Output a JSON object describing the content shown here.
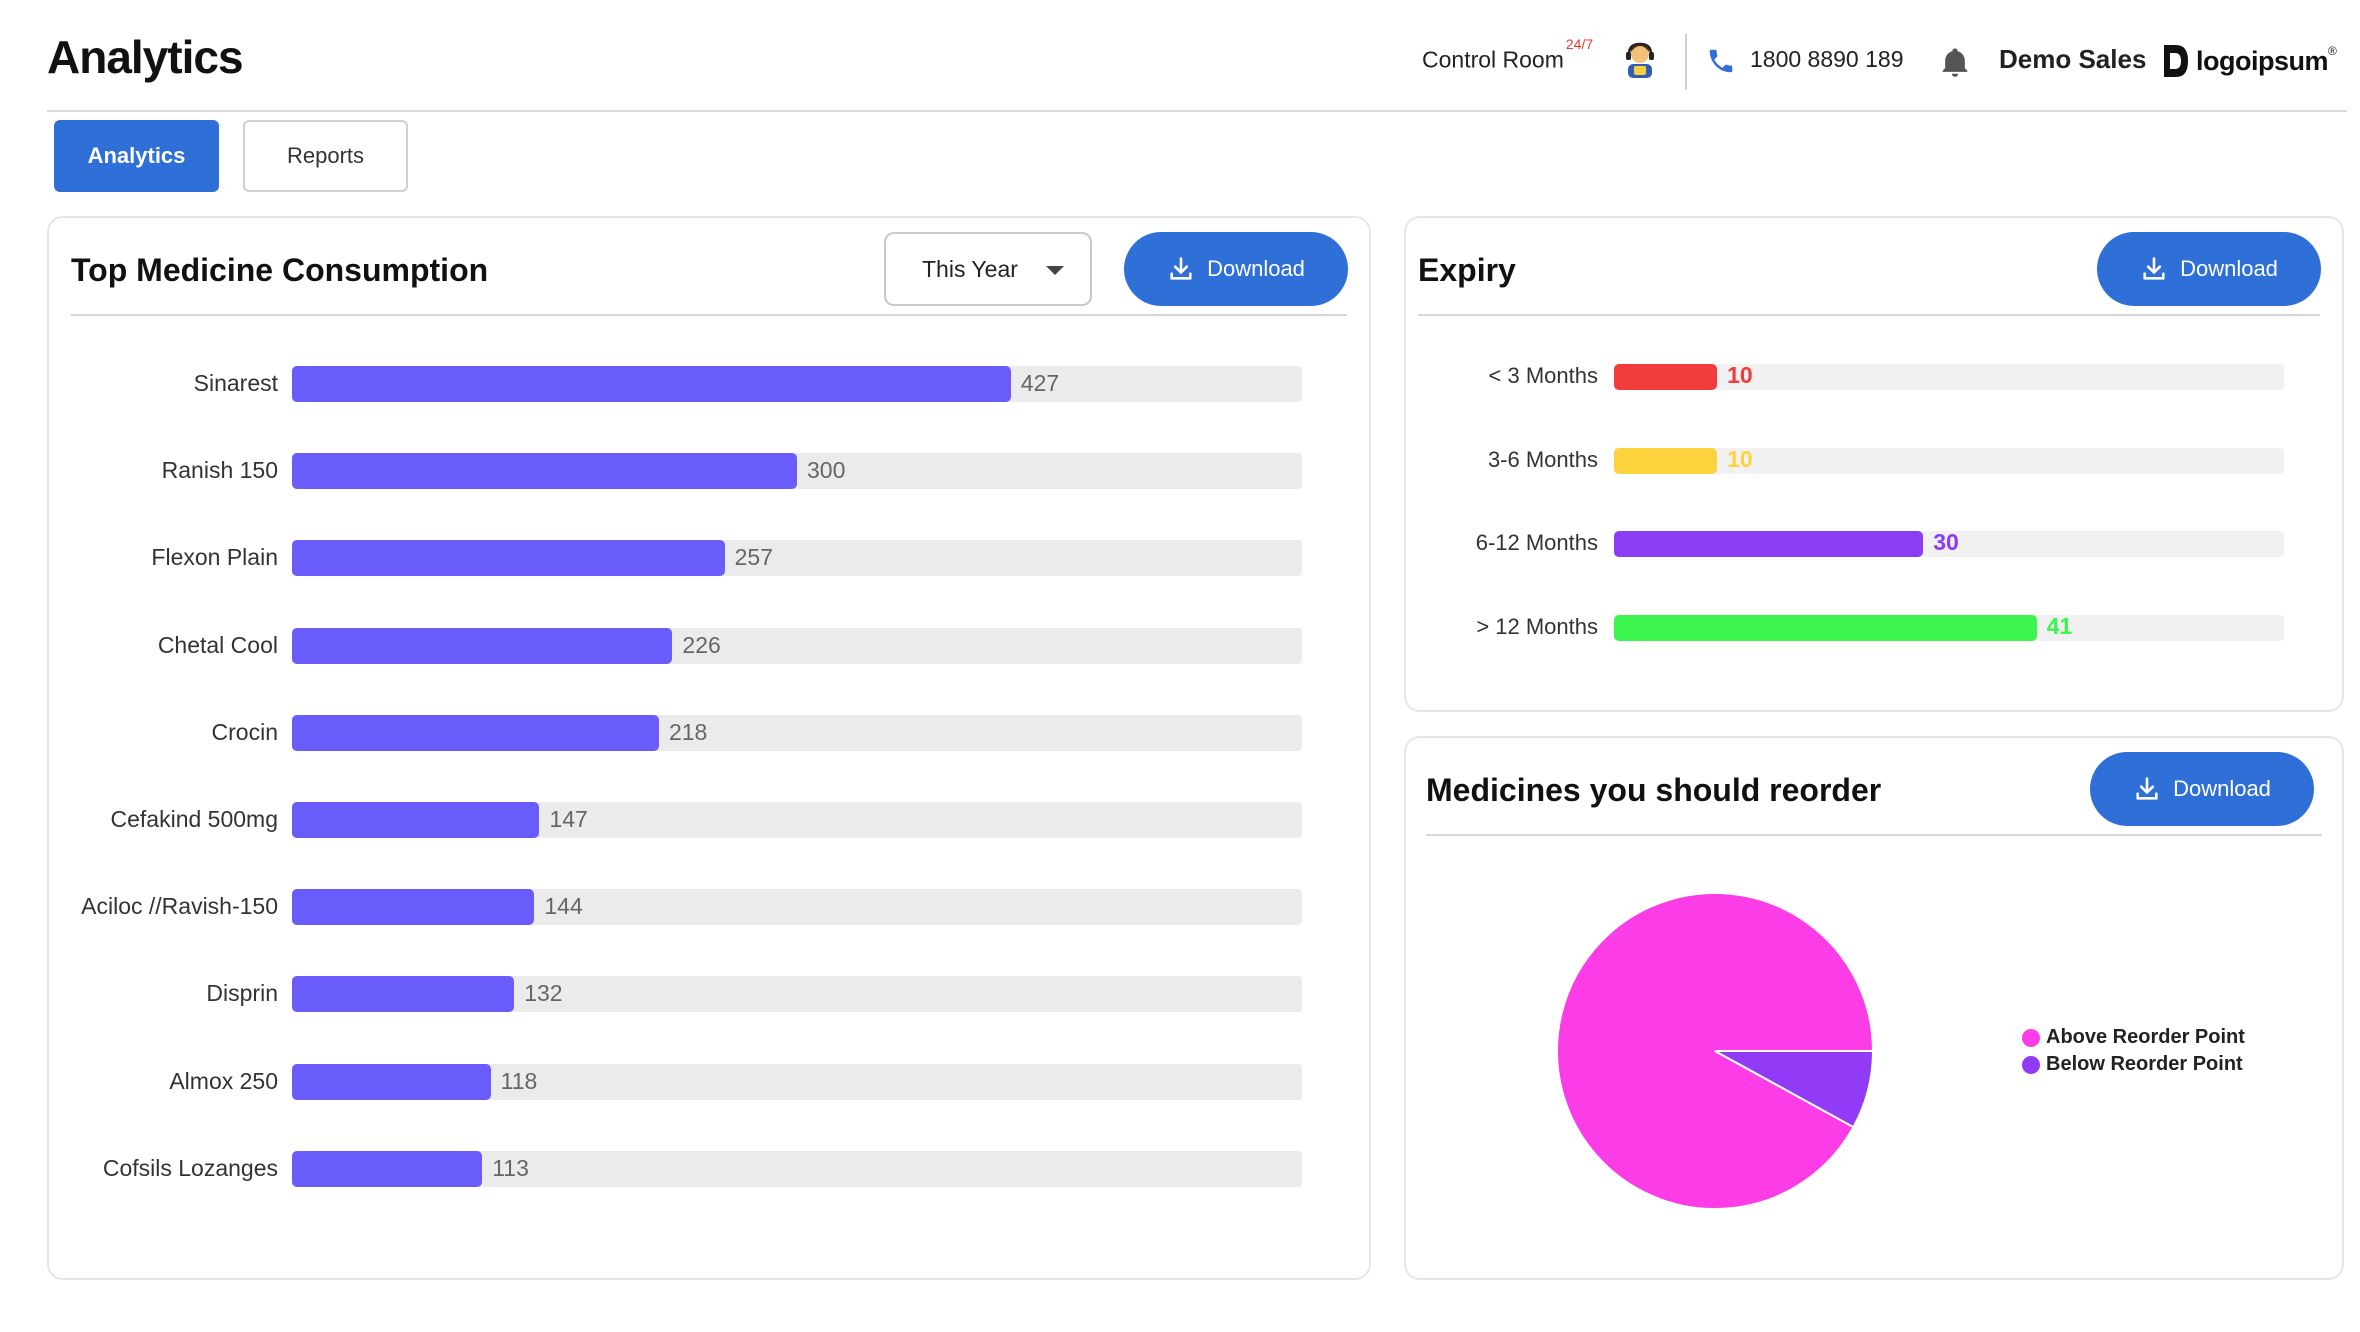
{
  "header": {
    "title": "Analytics",
    "control_room": "Control Room",
    "control_room_badge": "24/7",
    "phone": "1800 8890 189",
    "company": "Demo Sales",
    "logo_text": "logoipsum",
    "logo_mark": "®"
  },
  "tabs": [
    {
      "label": "Analytics",
      "active": true
    },
    {
      "label": "Reports",
      "active": false
    }
  ],
  "consumption": {
    "title": "Top Medicine Consumption",
    "period": "This Year",
    "download_label": "Download",
    "bar_color": "#6a5cfb",
    "chart_data": {
      "type": "bar",
      "orientation": "horizontal",
      "max": 600,
      "categories": [
        "Sinarest",
        "Ranish 150",
        "Flexon Plain",
        "Chetal Cool",
        "Crocin",
        "Cefakind 500mg",
        "Aciloc //Ravish-150",
        "Disprin",
        "Almox 250",
        "Cofsils Lozanges"
      ],
      "values": [
        427,
        300,
        257,
        226,
        218,
        147,
        144,
        132,
        118,
        113
      ]
    }
  },
  "expiry": {
    "title": "Expiry",
    "download_label": "Download",
    "chart_data": {
      "type": "bar",
      "orientation": "horizontal",
      "max": 65,
      "categories": [
        "< 3 Months",
        "3-6 Months",
        "6-12 Months",
        "> 12 Months"
      ],
      "values": [
        10,
        10,
        30,
        41
      ],
      "colors": [
        "#f23b3b",
        "#fdd33d",
        "#8c3cf5",
        "#3cf54e"
      ]
    }
  },
  "reorder": {
    "title": "Medicines you should reorder",
    "download_label": "Download",
    "chart_data": {
      "type": "pie",
      "series": [
        {
          "name": "Above Reorder Point",
          "value": 92,
          "color": "#fc3ce6"
        },
        {
          "name": "Below Reorder Point",
          "value": 8,
          "color": "#913bf7"
        }
      ]
    }
  }
}
